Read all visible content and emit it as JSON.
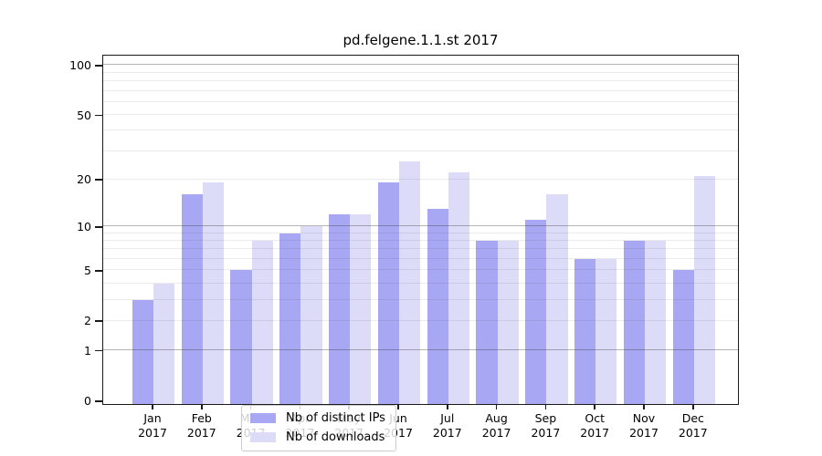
{
  "chart_data": {
    "type": "bar",
    "title": "pd.felgene.1.1.st 2017",
    "scale": "log1p",
    "grid": "on",
    "year_label": "2017",
    "categories": [
      "Jan",
      "Feb",
      "Mar",
      "Apr",
      "May",
      "Jun",
      "Jul",
      "Aug",
      "Sep",
      "Oct",
      "Nov",
      "Dec"
    ],
    "series": [
      {
        "name": "Nb of distinct IPs",
        "color": "#a7a7f3",
        "values": [
          3,
          16,
          5,
          9,
          12,
          19,
          13,
          8,
          11,
          6,
          8,
          5
        ]
      },
      {
        "name": "Nb of downloads",
        "color": "#dcdcf8",
        "values": [
          4,
          19,
          8,
          10,
          12,
          26,
          22,
          8,
          16,
          6,
          8,
          21
        ]
      }
    ],
    "xlabel": "",
    "ylabel": "",
    "ylim": [
      0,
      117
    ],
    "yticks": [
      0,
      1,
      2,
      5,
      10,
      20,
      50,
      100
    ],
    "gridlines": {
      "major": [
        1,
        10,
        100
      ],
      "minor": [
        2,
        3,
        4,
        5,
        6,
        7,
        8,
        9,
        20,
        30,
        40,
        50,
        60,
        70,
        80,
        90
      ]
    },
    "legend": {
      "position": "lower center",
      "entries": [
        "Nb of distinct IPs",
        "Nb of downloads"
      ]
    }
  }
}
